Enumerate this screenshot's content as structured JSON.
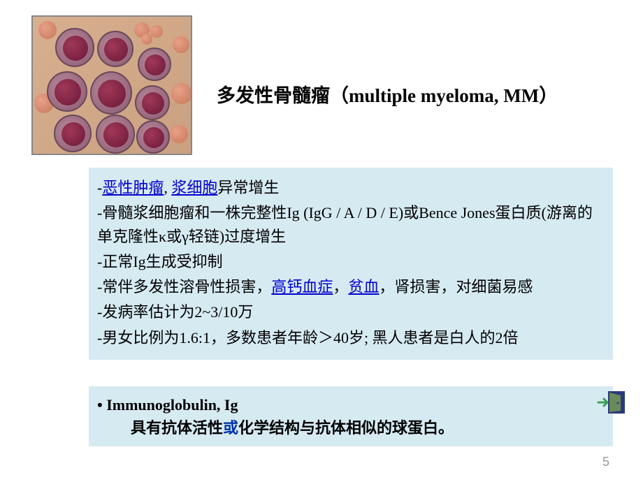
{
  "title": "多发性骨髓瘤（multiple myeloma, MM）",
  "image": {
    "alt": "plasma-cells-micrograph",
    "bg_color": "#d8b090",
    "rbc_color": "#c67858",
    "plasma_color": "#8a5a72",
    "nucleus_color": "#6b1838"
  },
  "main_box": {
    "bg_color": "#d6eaf2",
    "text_color": "#000000",
    "link_color": "#0000cc",
    "font_size_pt": 16,
    "lines": [
      {
        "prefix": "-",
        "parts": [
          {
            "t": "恶性肿瘤",
            "link": true
          },
          {
            "t": ", "
          },
          {
            "t": "浆细胞",
            "link": true
          },
          {
            "t": "异常增生"
          }
        ]
      },
      {
        "prefix": "-",
        "text": "骨髓浆细胞瘤和一株完整性Ig (IgG / A / D / E)或Bence Jones蛋白质(游离的单克隆性κ或γ轻链)过度增生"
      },
      {
        "prefix": "-",
        "text": "正常Ig生成受抑制"
      },
      {
        "prefix": "-",
        "parts": [
          {
            "t": "常伴多发性溶骨性损害，"
          },
          {
            "t": "高钙血症",
            "link": true
          },
          {
            "t": "，"
          },
          {
            "t": "贫血",
            "link": true
          },
          {
            "t": "，肾损害，对细菌易感"
          }
        ]
      },
      {
        "prefix": "-",
        "text": "发病率估计为2~3/10万"
      },
      {
        "prefix": "-",
        "text": "男女比例为1.6:1，多数患者年龄＞40岁; 黑人患者是白人的2倍"
      }
    ]
  },
  "sub_box": {
    "bg_color": "#d6eaf2",
    "line1_prefix": "• ",
    "line1_text": "Immunoglobulin,  Ig",
    "line2_pre": "具有抗体活性",
    "line2_highlight": "或",
    "line2_post": "化学结构与抗体相似的球蛋白。"
  },
  "door_icon": {
    "frame_color": "#2a3a7a",
    "door_color": "#5a7a4a",
    "arrow_color": "#3aa050"
  },
  "page_number": "5",
  "colors": {
    "background": "#ffffff",
    "page_num_color": "#9a9a9a"
  }
}
